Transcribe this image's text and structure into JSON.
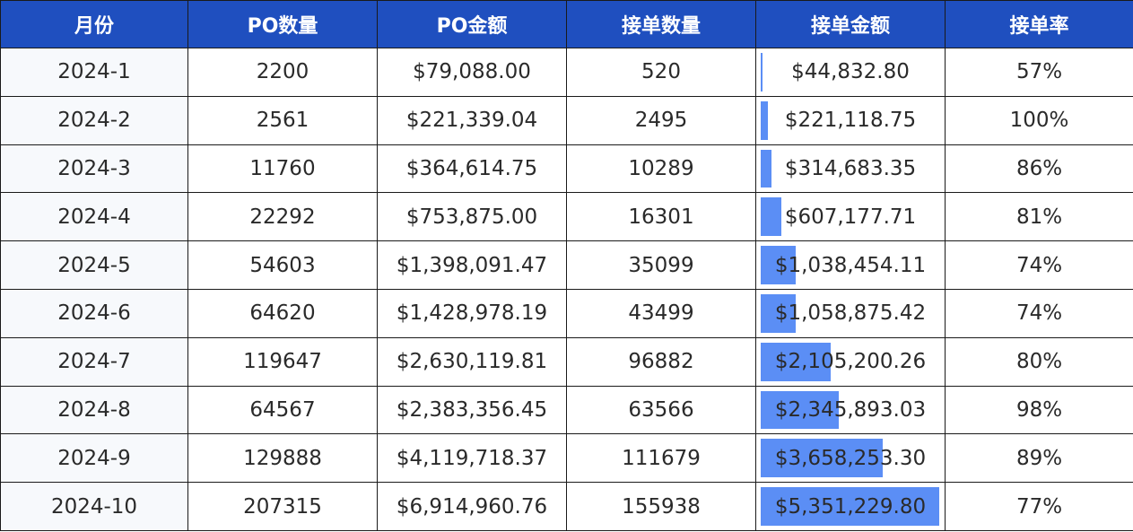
{
  "headers": [
    "月份",
    "PO数量",
    "PO金额",
    "接单数量",
    "接单金额",
    "接单率"
  ],
  "colors": {
    "header_bg": "#1f4fbf",
    "header_text": "#ffffff",
    "bar": "#5b8ef5",
    "grid": "#1a1a1a"
  },
  "rows": [
    {
      "month": "2024-1",
      "po_qty": "2200",
      "po_amount": "$79,088.00",
      "order_qty": "520",
      "order_amount": "$44,832.80",
      "order_amount_value": 44832.8,
      "rate": "57%"
    },
    {
      "month": "2024-2",
      "po_qty": "2561",
      "po_amount": "$221,339.04",
      "order_qty": "2495",
      "order_amount": "$221,118.75",
      "order_amount_value": 221118.75,
      "rate": "100%"
    },
    {
      "month": "2024-3",
      "po_qty": "11760",
      "po_amount": "$364,614.75",
      "order_qty": "10289",
      "order_amount": "$314,683.35",
      "order_amount_value": 314683.35,
      "rate": "86%"
    },
    {
      "month": "2024-4",
      "po_qty": "22292",
      "po_amount": "$753,875.00",
      "order_qty": "16301",
      "order_amount": "$607,177.71",
      "order_amount_value": 607177.71,
      "rate": "81%"
    },
    {
      "month": "2024-5",
      "po_qty": "54603",
      "po_amount": "$1,398,091.47",
      "order_qty": "35099",
      "order_amount": "$1,038,454.11",
      "order_amount_value": 1038454.11,
      "rate": "74%"
    },
    {
      "month": "2024-6",
      "po_qty": "64620",
      "po_amount": "$1,428,978.19",
      "order_qty": "43499",
      "order_amount": "$1,058,875.42",
      "order_amount_value": 1058875.42,
      "rate": "74%"
    },
    {
      "month": "2024-7",
      "po_qty": "119647",
      "po_amount": "$2,630,119.81",
      "order_qty": "96882",
      "order_amount": "$2,105,200.26",
      "order_amount_value": 2105200.26,
      "rate": "80%"
    },
    {
      "month": "2024-8",
      "po_qty": "64567",
      "po_amount": "$2,383,356.45",
      "order_qty": "63566",
      "order_amount": "$2,345,893.03",
      "order_amount_value": 2345893.03,
      "rate": "98%"
    },
    {
      "month": "2024-9",
      "po_qty": "129888",
      "po_amount": "$4,119,718.37",
      "order_qty": "111679",
      "order_amount": "$3,658,253.30",
      "order_amount_value": 3658253.3,
      "rate": "89%"
    },
    {
      "month": "2024-10",
      "po_qty": "207315",
      "po_amount": "$6,914,960.76",
      "order_qty": "155938",
      "order_amount": "$5,351,229.80",
      "order_amount_value": 5351229.8,
      "rate": "77%"
    }
  ]
}
